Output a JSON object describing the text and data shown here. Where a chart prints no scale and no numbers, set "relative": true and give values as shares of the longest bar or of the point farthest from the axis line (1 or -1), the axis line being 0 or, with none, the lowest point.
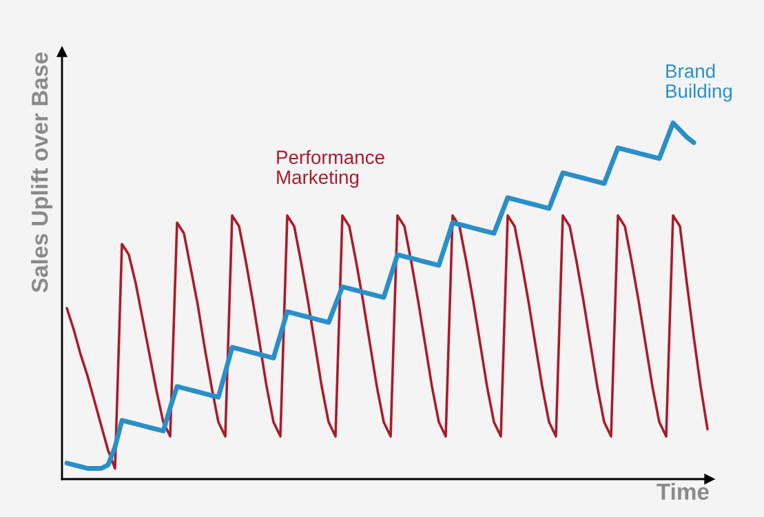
{
  "chart_data": {
    "type": "line",
    "relative": true,
    "xlabel": "Time",
    "ylabel": "Sales Uplift over Base",
    "legend": false,
    "categories": [
      null,
      null,
      null,
      null,
      null,
      null,
      null,
      null,
      null,
      null,
      null,
      null,
      null,
      null,
      null,
      null,
      null,
      null,
      null,
      null,
      null,
      null,
      null,
      null,
      null,
      null,
      null,
      null,
      null,
      null,
      null,
      null,
      null,
      null,
      null,
      null,
      null,
      null,
      null,
      null,
      null,
      null,
      null,
      null,
      null,
      null,
      null,
      null,
      null,
      null,
      null,
      null,
      null,
      null,
      null,
      null,
      null,
      null,
      null,
      null,
      null,
      null,
      null,
      null,
      null,
      null,
      null,
      null,
      null,
      null,
      null,
      null,
      null,
      null,
      null,
      null,
      null,
      null,
      null,
      null,
      null,
      null,
      null,
      null,
      null,
      null,
      null,
      null,
      null,
      null,
      null,
      null,
      null,
      null
    ],
    "series": [
      {
        "name": "Performance\nMarketing",
        "color": "#a91d2a",
        "values": [
          0.48,
          0.42,
          0.35,
          0.29,
          0.22,
          0.15,
          0.08,
          0.03,
          0.66,
          0.63,
          0.55,
          0.45,
          0.35,
          0.25,
          0.16,
          0.12,
          0.72,
          0.69,
          0.59,
          0.49,
          0.37,
          0.26,
          0.16,
          0.12,
          0.74,
          0.71,
          0.61,
          0.5,
          0.38,
          0.26,
          0.16,
          0.12,
          0.74,
          0.71,
          0.61,
          0.5,
          0.38,
          0.26,
          0.16,
          0.12,
          0.74,
          0.71,
          0.61,
          0.5,
          0.38,
          0.26,
          0.16,
          0.12,
          0.74,
          0.71,
          0.61,
          0.5,
          0.38,
          0.26,
          0.16,
          0.12,
          0.74,
          0.71,
          0.61,
          0.5,
          0.38,
          0.26,
          0.16,
          0.12,
          0.74,
          0.71,
          0.61,
          0.5,
          0.38,
          0.26,
          0.16,
          0.12,
          0.74,
          0.71,
          0.61,
          0.5,
          0.38,
          0.26,
          0.16,
          0.12,
          0.74,
          0.71,
          0.61,
          0.5,
          0.38,
          0.26,
          0.16,
          0.12,
          0.74,
          0.71,
          0.55,
          0.4,
          0.26,
          0.14
        ]
      },
      {
        "name": "Brand\nBuilding",
        "color": "#2a8fc8",
        "values": [
          0.045,
          0.04,
          0.035,
          0.03,
          0.03,
          0.03,
          0.04,
          0.09,
          0.165,
          0.16,
          0.155,
          0.15,
          0.145,
          0.14,
          0.135,
          0.2,
          0.26,
          0.255,
          0.25,
          0.245,
          0.24,
          0.235,
          0.23,
          0.3,
          0.37,
          0.365,
          0.36,
          0.355,
          0.35,
          0.345,
          0.34,
          0.405,
          0.47,
          0.465,
          0.46,
          0.455,
          0.45,
          0.445,
          0.44,
          0.49,
          0.54,
          0.535,
          0.53,
          0.525,
          0.52,
          0.515,
          0.51,
          0.57,
          0.63,
          0.625,
          0.62,
          0.615,
          0.61,
          0.605,
          0.6,
          0.66,
          0.72,
          0.715,
          0.71,
          0.705,
          0.7,
          0.695,
          0.69,
          0.74,
          0.79,
          0.785,
          0.78,
          0.775,
          0.77,
          0.765,
          0.76,
          0.81,
          0.86,
          0.855,
          0.85,
          0.845,
          0.84,
          0.835,
          0.83,
          0.88,
          0.93,
          0.925,
          0.92,
          0.915,
          0.91,
          0.905,
          0.9,
          0.95,
          1.0,
          0.98,
          0.96,
          0.945,
          null,
          null
        ]
      }
    ]
  }
}
